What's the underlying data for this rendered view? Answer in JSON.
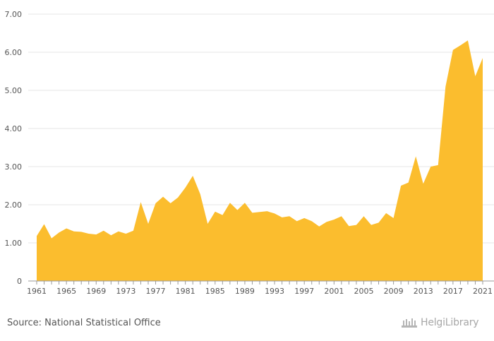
{
  "chart_data": {
    "type": "area",
    "title": "",
    "xlabel": "",
    "ylabel": "",
    "ylim": [
      0,
      7
    ],
    "yticks": [
      "0",
      "1.00",
      "2.00",
      "3.00",
      "4.00",
      "5.00",
      "6.00",
      "7.00"
    ],
    "xticks": [
      "1961",
      "1965",
      "1969",
      "1973",
      "1977",
      "1981",
      "1985",
      "1989",
      "1993",
      "1997",
      "2001",
      "2005",
      "2009",
      "2013",
      "2017",
      "2021"
    ],
    "x": [
      1961,
      1962,
      1963,
      1964,
      1965,
      1966,
      1967,
      1968,
      1969,
      1970,
      1971,
      1972,
      1973,
      1974,
      1975,
      1976,
      1977,
      1978,
      1979,
      1980,
      1981,
      1982,
      1983,
      1984,
      1985,
      1986,
      1987,
      1988,
      1989,
      1990,
      1991,
      1992,
      1993,
      1994,
      1995,
      1996,
      1997,
      1998,
      1999,
      2000,
      2001,
      2002,
      2003,
      2004,
      2005,
      2006,
      2007,
      2008,
      2009,
      2010,
      2011,
      2012,
      2013,
      2014,
      2015,
      2016,
      2017,
      2018,
      2019,
      2020,
      2021
    ],
    "values": [
      1.18,
      1.49,
      1.12,
      1.27,
      1.38,
      1.3,
      1.29,
      1.24,
      1.22,
      1.32,
      1.2,
      1.3,
      1.24,
      1.32,
      2.07,
      1.5,
      2.04,
      2.21,
      2.04,
      2.19,
      2.45,
      2.76,
      2.28,
      1.5,
      1.82,
      1.73,
      2.05,
      1.86,
      2.05,
      1.79,
      1.81,
      1.83,
      1.77,
      1.67,
      1.7,
      1.57,
      1.65,
      1.57,
      1.43,
      1.55,
      1.61,
      1.7,
      1.44,
      1.47,
      1.7,
      1.47,
      1.53,
      1.78,
      1.65,
      2.5,
      2.58,
      3.27,
      2.55,
      3.0,
      3.04,
      5.1,
      6.06,
      6.18,
      6.31,
      5.37,
      5.85
    ],
    "series_color": "#fbbd2e",
    "grid": true,
    "legend": "none"
  },
  "footer": {
    "source": "Source: National Statistical Office",
    "brand": "HelgiLibrary"
  }
}
